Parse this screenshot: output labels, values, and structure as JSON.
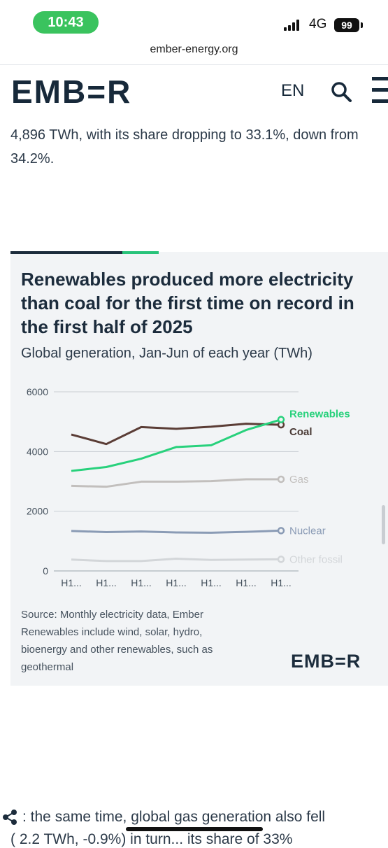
{
  "status_bar": {
    "time": "10:43",
    "network": "4G",
    "battery": "99"
  },
  "browser": {
    "url": "ember-energy.org"
  },
  "site_header": {
    "logo": "EMB=R",
    "language": "EN"
  },
  "article": {
    "paragraph": "4,896 TWh, with its share dropping to 33.1%, down from 34.2%.",
    "bottom_text": ": the same time, global gas generation also fell",
    "bottom_text_line2": "( 2.2 TWh, -0.9%) in turn... its share of 33%"
  },
  "chart_card": {
    "title": "Renewables produced more electricity than coal for the first time on record in the first half of 2025",
    "subtitle": "Global generation, Jan-Jun of each year (TWh)",
    "source_lines": [
      "Source: Monthly electricity data, Ember",
      "Renewables include wind, solar, hydro,",
      "bioenergy and other renewables, such as",
      "geothermal"
    ],
    "logo": "EMB=R",
    "colors": {
      "renewables": "#28d17c",
      "coal": "#5b3d36",
      "gas": "#c2bfbd",
      "nuclear": "#8a9bb5",
      "other_fossil": "#d3d6d9"
    }
  },
  "chart_data": {
    "type": "line",
    "x": [
      "H1...",
      "H1...",
      "H1...",
      "H1...",
      "H1...",
      "H1...",
      "H1..."
    ],
    "ylim": [
      0,
      6000
    ],
    "yticks": [
      "0",
      "2000",
      "4000",
      "6000"
    ],
    "grid": true,
    "legend": "end-of-line labels",
    "series": [
      {
        "name": "Renewables",
        "color": "#28d17c",
        "values": [
          3350,
          3480,
          3760,
          4150,
          4210,
          4720,
          5070
        ]
      },
      {
        "name": "Coal",
        "color": "#5b3d36",
        "values": [
          4570,
          4250,
          4820,
          4760,
          4830,
          4930,
          4896
        ]
      },
      {
        "name": "Gas",
        "color": "#c2bfbd",
        "values": [
          2850,
          2820,
          2990,
          2990,
          3010,
          3070,
          3070
        ]
      },
      {
        "name": "Nuclear",
        "color": "#8a9bb5",
        "values": [
          1340,
          1300,
          1320,
          1290,
          1280,
          1310,
          1350
        ]
      },
      {
        "name": "Other fossil",
        "color": "#d3d6d9",
        "values": [
          380,
          330,
          330,
          410,
          370,
          380,
          390
        ]
      }
    ]
  }
}
